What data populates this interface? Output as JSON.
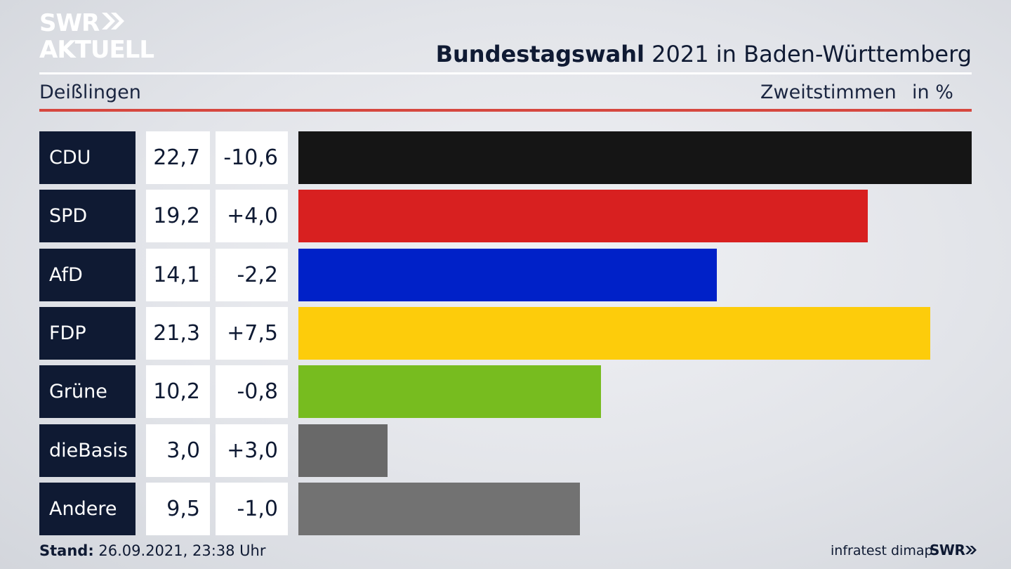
{
  "logo": {
    "line1": "SWR",
    "line2": "AKTUELL"
  },
  "header": {
    "title_bold": "Bundestagswahl",
    "title_rest": " 2021 in Baden-Württemberg",
    "region": "Deißlingen",
    "vote_type": "Zweitstimmen",
    "unit": "in %"
  },
  "chart_data": {
    "type": "bar",
    "categories": [
      "CDU",
      "SPD",
      "AfD",
      "FDP",
      "Grüne",
      "dieBasis",
      "Andere"
    ],
    "values": [
      22.7,
      19.2,
      14.1,
      21.3,
      10.2,
      3.0,
      9.5
    ],
    "value_labels": [
      "22,7",
      "19,2",
      "14,1",
      "21,3",
      "10,2",
      "3,0",
      "9,5"
    ],
    "change_labels": [
      "-10,6",
      "+4,0",
      "-2,2",
      "+7,5",
      "-0,8",
      "+3,0",
      "-1,0"
    ],
    "colors": [
      "#151515",
      "#d82020",
      "#0021c8",
      "#fdcc0b",
      "#77bc1f",
      "#696969",
      "#727272"
    ],
    "max_value": 22.7
  },
  "footer": {
    "stand_label": "Stand:",
    "stand_value": " 26.09.2021, 23:38 Uhr",
    "source": "infratest dimap",
    "brand": "SWR"
  }
}
